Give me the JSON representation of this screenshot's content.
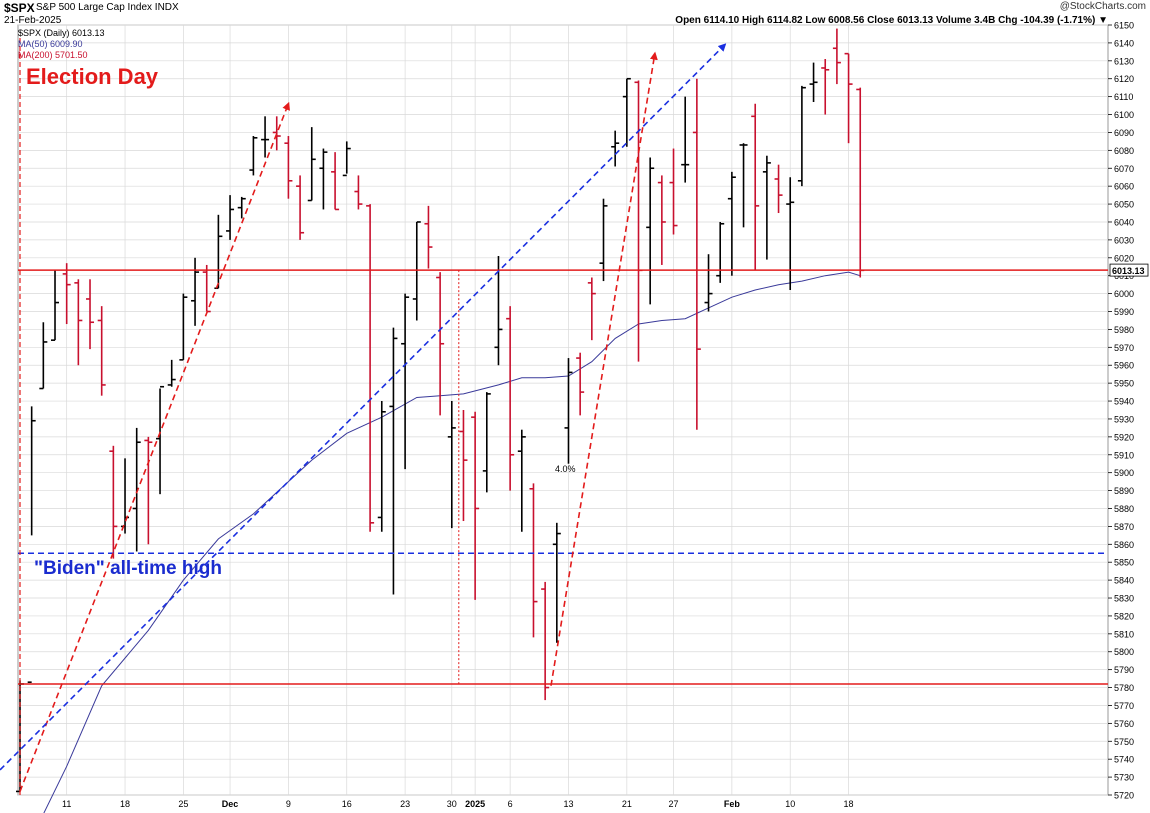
{
  "header": {
    "symbol": "$SPX",
    "name": "S&P 500 Large Cap Index  INDX",
    "date": "21-Feb-2025",
    "credit": "@StockCharts.com",
    "ohlc": "Open 6114.10   High 6114.82   Low 6008.56   Close 6013.13   Volume 3.4B   Chg -104.39 (-1.71%) ▼"
  },
  "legend": {
    "main": "$SPX (Daily) 6013.13",
    "ma50": "MA(50) 6009.90",
    "ma200": "MA(200) 5701.50"
  },
  "annotations": {
    "election": "Election Day",
    "biden": "\"Biden\" all-time high",
    "pct": "4.0%"
  },
  "colors": {
    "up": "#000000",
    "down": "#c8102e",
    "ma": "#3a3a9a",
    "red_line": "#e31b1b",
    "blue_line": "#1a2fe0",
    "grid": "#d9d9d9"
  },
  "chart_data": {
    "type": "ohlc",
    "ylim": [
      5720,
      6150
    ],
    "yticks": [
      5720,
      5730,
      5740,
      5750,
      5760,
      5770,
      5780,
      5790,
      5800,
      5810,
      5820,
      5830,
      5840,
      5850,
      5860,
      5870,
      5880,
      5890,
      5900,
      5910,
      5920,
      5930,
      5940,
      5950,
      5960,
      5970,
      5980,
      5990,
      6000,
      6010,
      6020,
      6030,
      6040,
      6050,
      6060,
      6070,
      6080,
      6090,
      6100,
      6110,
      6120,
      6130,
      6140,
      6150
    ],
    "xticks": [
      {
        "label": "11",
        "i": 4,
        "bold": false
      },
      {
        "label": "18",
        "i": 9,
        "bold": false
      },
      {
        "label": "25",
        "i": 14,
        "bold": false
      },
      {
        "label": "Dec",
        "i": 18,
        "bold": true
      },
      {
        "label": "9",
        "i": 23,
        "bold": false
      },
      {
        "label": "16",
        "i": 28,
        "bold": false
      },
      {
        "label": "23",
        "i": 33,
        "bold": false
      },
      {
        "label": "30",
        "i": 37,
        "bold": false
      },
      {
        "label": "2025",
        "i": 39,
        "bold": true
      },
      {
        "label": "6",
        "i": 42,
        "bold": false
      },
      {
        "label": "13",
        "i": 47,
        "bold": false
      },
      {
        "label": "21",
        "i": 52,
        "bold": false
      },
      {
        "label": "27",
        "i": 56,
        "bold": false
      },
      {
        "label": "Feb",
        "i": 61,
        "bold": true
      },
      {
        "label": "10",
        "i": 66,
        "bold": false
      },
      {
        "label": "18",
        "i": 71,
        "bold": false
      }
    ],
    "last_close_label": "6013.13",
    "bars": [
      [
        5722,
        5784,
        5722,
        5782
      ],
      [
        5783,
        5937,
        5865,
        5929
      ],
      [
        5947,
        5984,
        5947,
        5973
      ],
      [
        5974,
        6013,
        5974,
        5995
      ],
      [
        6011,
        6017,
        5983,
        6005
      ],
      [
        6006,
        6008,
        5960,
        5985
      ],
      [
        5997,
        6008,
        5969,
        5984
      ],
      [
        5985,
        5993,
        5943,
        5949
      ],
      [
        5912,
        5915,
        5852,
        5870
      ],
      [
        5870,
        5908,
        5866,
        5875
      ],
      [
        5880,
        5925,
        5856,
        5917
      ],
      [
        5918,
        5920,
        5860,
        5917
      ],
      [
        5919,
        5947,
        5888,
        5948
      ],
      [
        5949,
        5963,
        5948,
        5952
      ],
      [
        5963,
        6000,
        5963,
        5998
      ],
      [
        5996,
        6020,
        5982,
        6012
      ],
      [
        6012,
        6016,
        5990,
        5990
      ],
      [
        6003,
        6044,
        6003,
        6032
      ],
      [
        6035,
        6055,
        6030,
        6047
      ],
      [
        6048,
        6054,
        6042,
        6053
      ],
      [
        6069,
        6088,
        6066,
        6087
      ],
      [
        6086,
        6099,
        6076,
        6086
      ],
      [
        6090,
        6099,
        6080,
        6088
      ],
      [
        6084,
        6088,
        6053,
        6063
      ],
      [
        6060,
        6066,
        6030,
        6034
      ],
      [
        6052,
        6093,
        6052,
        6075
      ],
      [
        6070,
        6081,
        6047,
        6079
      ],
      [
        6068,
        6079,
        6047,
        6047
      ],
      [
        6066,
        6085,
        6067,
        6081
      ],
      [
        6057,
        6066,
        6047,
        6050
      ],
      [
        6049,
        6050,
        5867,
        5872
      ],
      [
        5875,
        5940,
        5867,
        5934
      ],
      [
        5937,
        5981,
        5832,
        5975
      ],
      [
        5972,
        6000,
        5902,
        5998
      ],
      [
        5997,
        6040,
        5985,
        6040
      ],
      [
        6039,
        6049,
        6014,
        6026
      ],
      [
        6009,
        6012,
        5932,
        5972
      ],
      [
        5920,
        5940,
        5869,
        5925
      ],
      [
        5923,
        5935,
        5873,
        5907
      ],
      [
        5931,
        5934,
        5829,
        5880
      ],
      [
        5901,
        5945,
        5889,
        5944
      ],
      [
        5970,
        6021,
        5960,
        5980
      ],
      [
        5986,
        5993,
        5890,
        5910
      ],
      [
        5912,
        5924,
        5867,
        5920
      ],
      [
        5891,
        5894,
        5808,
        5828
      ],
      [
        5835,
        5839,
        5773,
        5780
      ],
      [
        5860,
        5872,
        5805,
        5866
      ],
      [
        5925,
        5964,
        5905,
        5956
      ],
      [
        5964,
        5967,
        5932,
        5945
      ],
      [
        6006,
        6009,
        5974,
        6000
      ],
      [
        6017,
        6053,
        6007,
        6049
      ],
      [
        6082,
        6091,
        6071,
        6084
      ],
      [
        6110,
        6120,
        6082,
        6120
      ],
      [
        6118,
        6119,
        5962,
        6013
      ],
      [
        6037,
        6076,
        5994,
        6070
      ],
      [
        6062,
        6066,
        6016,
        6040
      ],
      [
        6062,
        6081,
        6033,
        6038
      ],
      [
        6072,
        6110,
        6062,
        6072
      ],
      [
        6090,
        6120,
        5924,
        5969
      ],
      [
        5995,
        6022,
        5990,
        6000
      ],
      [
        6010,
        6040,
        6006,
        6039
      ],
      [
        6053,
        6068,
        6010,
        6065
      ],
      [
        6083,
        6084,
        6037,
        6083
      ],
      [
        6099,
        6106,
        6013,
        6049
      ],
      [
        6068,
        6077,
        6019,
        6073
      ],
      [
        6064,
        6072,
        6045,
        6055
      ],
      [
        6050,
        6065,
        6002,
        6051
      ],
      [
        6063,
        6116,
        6060,
        6115
      ],
      [
        6117,
        6129,
        6107,
        6118
      ],
      [
        6126,
        6131,
        6100,
        6125
      ],
      [
        6137,
        6148,
        6117,
        6129
      ],
      [
        6134,
        6134,
        6084,
        6117
      ],
      [
        6114,
        6115,
        6009,
        6013
      ]
    ],
    "ma50": [
      [
        1,
        5696
      ],
      [
        4,
        5736
      ],
      [
        7,
        5781
      ],
      [
        11,
        5812
      ],
      [
        14,
        5840
      ],
      [
        17,
        5863
      ],
      [
        20,
        5877
      ],
      [
        22,
        5889
      ],
      [
        25,
        5907
      ],
      [
        28,
        5922
      ],
      [
        31,
        5931
      ],
      [
        34,
        5942
      ],
      [
        36,
        5943
      ],
      [
        38,
        5944
      ],
      [
        41,
        5949
      ],
      [
        43,
        5953
      ],
      [
        45,
        5953
      ],
      [
        47,
        5954
      ],
      [
        49,
        5962
      ],
      [
        51,
        5975
      ],
      [
        53,
        5983
      ],
      [
        55,
        5985
      ],
      [
        57,
        5986
      ],
      [
        59,
        5992
      ],
      [
        61,
        5998
      ],
      [
        63,
        6002
      ],
      [
        65,
        6005
      ],
      [
        67,
        6007
      ],
      [
        69,
        6010
      ],
      [
        71,
        6012
      ],
      [
        72,
        6010
      ]
    ],
    "levels": [
      6013.13,
      5782
    ],
    "biden_high": 5855
  }
}
